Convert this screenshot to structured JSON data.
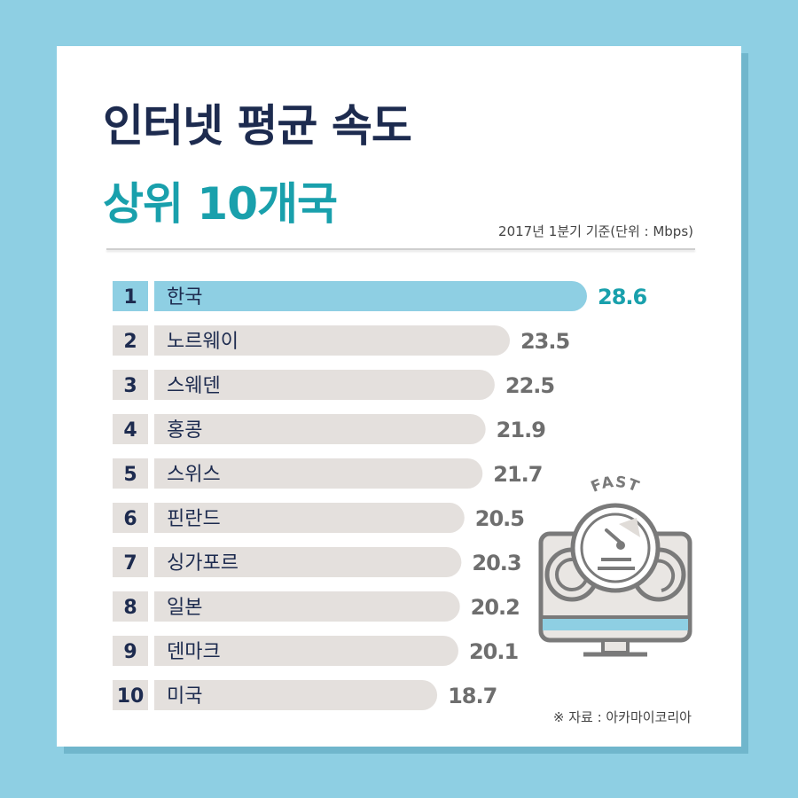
{
  "title": {
    "line1": "인터넷 평균 속도",
    "line2": "상위 10개국"
  },
  "subtitle": "2017년 1분기 기준(단위 : Mbps)",
  "source": "※ 자료 : 아카마이코리아",
  "icon": {
    "name": "speedometer-monitor-icon",
    "label": "FAST"
  },
  "colors": {
    "background": "#8ecfe3",
    "title_dark": "#1d2b4f",
    "accent": "#19a0ac",
    "highlight_bar": "#8ecfe3",
    "bar": "#e4e0dd",
    "rank_box": "#e4e0dd",
    "value_text": "#6e6e6e"
  },
  "chart_data": {
    "type": "bar",
    "orientation": "horizontal",
    "title": "인터넷 평균 속도 상위 10개국",
    "subtitle": "2017년 1분기 기준(단위 : Mbps)",
    "ranks": [
      "1",
      "2",
      "3",
      "4",
      "5",
      "6",
      "7",
      "8",
      "9",
      "10"
    ],
    "categories": [
      "한국",
      "노르웨이",
      "스웨덴",
      "홍콩",
      "스위스",
      "핀란드",
      "싱가포르",
      "일본",
      "덴마크",
      "미국"
    ],
    "values": [
      28.6,
      23.5,
      22.5,
      21.9,
      21.7,
      20.5,
      20.3,
      20.2,
      20.1,
      18.7
    ],
    "value_labels": [
      "28.6",
      "23.5",
      "22.5",
      "21.9",
      "21.7",
      "20.5",
      "20.3",
      "20.2",
      "20.1",
      "18.7"
    ],
    "highlight_index": 0,
    "xlim": [
      0,
      28.6
    ],
    "grid": false,
    "legend": "none"
  }
}
